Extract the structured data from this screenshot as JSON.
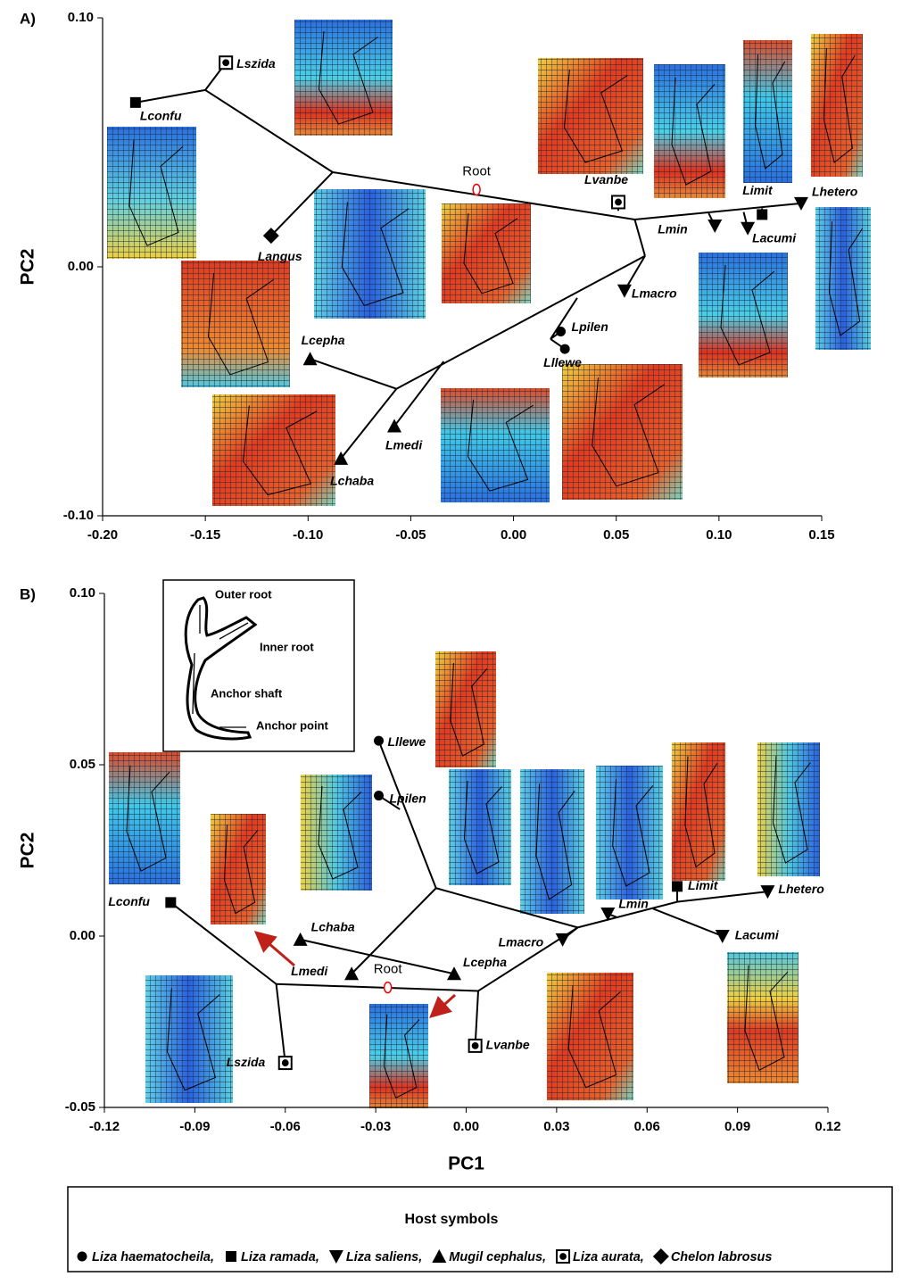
{
  "chart_data": [
    {
      "type": "scatter",
      "panel": "A)",
      "ylabel": "PC2",
      "xlim": [
        -0.2,
        0.15
      ],
      "ylim": [
        -0.1,
        0.1
      ],
      "xticks": [
        {
          "value": -0.2,
          "label": "-0.20"
        },
        {
          "value": -0.15,
          "label": "-0.15"
        },
        {
          "value": -0.1,
          "label": "-0.10"
        },
        {
          "value": -0.05,
          "label": "-0.05"
        },
        {
          "value": 0,
          "label": "0.00"
        },
        {
          "value": 0.05,
          "label": "0.05"
        },
        {
          "value": 0.1,
          "label": "0.10"
        },
        {
          "value": 0.15,
          "label": "0.15"
        }
      ],
      "yticks": [
        {
          "value": -0.1,
          "label": "-0.10"
        },
        {
          "value": 0,
          "label": "0.00"
        },
        {
          "value": 0.1,
          "label": "0.10"
        }
      ],
      "root": {
        "label": "Root",
        "x": -0.018,
        "y": 0.031
      },
      "points": [
        {
          "name": "Lconfu",
          "x": -0.184,
          "y": 0.066,
          "marker": "square"
        },
        {
          "name": "Lszida",
          "x": -0.14,
          "y": 0.082,
          "marker": "circle-in-square"
        },
        {
          "name": "Langus",
          "x": -0.118,
          "y": 0.0125,
          "marker": "diamond"
        },
        {
          "name": "Lvanbe",
          "x": 0.051,
          "y": 0.026,
          "marker": "circle-in-square"
        },
        {
          "name": "Lmin",
          "x": 0.098,
          "y": 0.0165,
          "marker": "triangle-down"
        },
        {
          "name": "Lacumi",
          "x": 0.114,
          "y": 0.0155,
          "marker": "triangle-down"
        },
        {
          "name": "Limit",
          "x": 0.121,
          "y": 0.021,
          "marker": "square"
        },
        {
          "name": "Lhetero",
          "x": 0.14,
          "y": 0.0255,
          "marker": "triangle-down"
        },
        {
          "name": "Lmacro",
          "x": 0.054,
          "y": -0.0096,
          "marker": "triangle-down"
        },
        {
          "name": "Lpilen",
          "x": 0.023,
          "y": -0.026,
          "marker": "circle"
        },
        {
          "name": "Lllewe",
          "x": 0.025,
          "y": -0.033,
          "marker": "circle"
        },
        {
          "name": "Lcepha",
          "x": -0.099,
          "y": -0.037,
          "marker": "triangle-up"
        },
        {
          "name": "Lmedi",
          "x": -0.058,
          "y": -0.064,
          "marker": "triangle-up"
        },
        {
          "name": "Lchaba",
          "x": -0.084,
          "y": -0.077,
          "marker": "triangle-up"
        }
      ],
      "edges": [
        [
          -0.184,
          0.066,
          -0.15,
          0.071
        ],
        [
          -0.14,
          0.082,
          -0.15,
          0.071
        ],
        [
          -0.15,
          0.071,
          -0.088,
          0.038
        ],
        [
          -0.088,
          0.038,
          -0.118,
          0.0125
        ],
        [
          -0.088,
          0.038,
          0.059,
          0.019
        ],
        [
          0.051,
          0.026,
          0.051,
          0.0225
        ],
        [
          0.059,
          0.019,
          0.14,
          0.0255
        ],
        [
          0.098,
          0.0165,
          0.095,
          0.0215
        ],
        [
          0.114,
          0.0155,
          0.112,
          0.022
        ],
        [
          0.121,
          0.021,
          0.121,
          0.0235
        ],
        [
          0.059,
          0.019,
          0.064,
          0.0044
        ],
        [
          0.064,
          0.0044,
          0.054,
          -0.0096
        ],
        [
          0.064,
          0.0044,
          -0.057,
          -0.049
        ],
        [
          0.018,
          -0.029,
          0.023,
          -0.026
        ],
        [
          0.018,
          -0.029,
          0.025,
          -0.033
        ],
        [
          0.018,
          -0.029,
          0.031,
          -0.0125
        ],
        [
          -0.057,
          -0.049,
          -0.099,
          -0.037
        ],
        [
          -0.057,
          -0.049,
          -0.084,
          -0.077
        ],
        [
          -0.034,
          -0.038,
          -0.058,
          -0.064
        ]
      ]
    },
    {
      "type": "scatter",
      "panel": "B)",
      "xlabel": "PC1",
      "ylabel": "PC2",
      "xlim": [
        -0.12,
        0.12
      ],
      "ylim": [
        -0.05,
        0.1
      ],
      "xticks": [
        {
          "value": -0.12,
          "label": "-0.12"
        },
        {
          "value": -0.09,
          "label": "-0.09"
        },
        {
          "value": -0.06,
          "label": "-0.06"
        },
        {
          "value": -0.03,
          "label": "-0.03"
        },
        {
          "value": 0,
          "label": "0.00"
        },
        {
          "value": 0.03,
          "label": "0.03"
        },
        {
          "value": 0.06,
          "label": "0.06"
        },
        {
          "value": 0.09,
          "label": "0.09"
        },
        {
          "value": 0.12,
          "label": "0.12"
        }
      ],
      "yticks": [
        {
          "value": -0.05,
          "label": "-0.05"
        },
        {
          "value": 0,
          "label": "0.00"
        },
        {
          "value": 0.05,
          "label": "0.05"
        },
        {
          "value": 0.1,
          "label": "0.10"
        }
      ],
      "root": {
        "label": "Root",
        "x": -0.026,
        "y": -0.015
      },
      "inset_labels": [
        "Outer root",
        "Inner root",
        "Anchor shaft",
        "Anchor point"
      ],
      "points": [
        {
          "name": "Lllewe",
          "x": -0.029,
          "y": 0.057,
          "marker": "circle"
        },
        {
          "name": "Lpilen",
          "x": -0.029,
          "y": 0.041,
          "marker": "circle"
        },
        {
          "name": "Lconfu",
          "x": -0.098,
          "y": 0.0098,
          "marker": "square"
        },
        {
          "name": "Lchaba",
          "x": -0.055,
          "y": -0.001,
          "marker": "triangle-up"
        },
        {
          "name": "Lmedi",
          "x": -0.038,
          "y": -0.011,
          "marker": "triangle-up"
        },
        {
          "name": "Lcepha",
          "x": -0.004,
          "y": -0.011,
          "marker": "triangle-up"
        },
        {
          "name": "Lszida",
          "x": -0.06,
          "y": -0.037,
          "marker": "circle-in-square"
        },
        {
          "name": "Lvanbe",
          "x": 0.003,
          "y": -0.032,
          "marker": "circle-in-square"
        },
        {
          "name": "Lmacro",
          "x": 0.032,
          "y": -0.001,
          "marker": "triangle-down"
        },
        {
          "name": "Lmin",
          "x": 0.047,
          "y": 0.0065,
          "marker": "triangle-down"
        },
        {
          "name": "Limit",
          "x": 0.07,
          "y": 0.0145,
          "marker": "square"
        },
        {
          "name": "Lhetero",
          "x": 0.1,
          "y": 0.013,
          "marker": "triangle-down"
        },
        {
          "name": "Lacumi",
          "x": 0.085,
          "y": 0,
          "marker": "triangle-down"
        }
      ],
      "edges": [
        [
          -0.098,
          0.0098,
          -0.063,
          -0.014
        ],
        [
          -0.063,
          -0.014,
          -0.06,
          -0.037
        ],
        [
          -0.063,
          -0.014,
          0.004,
          -0.016
        ],
        [
          0.004,
          -0.016,
          0.003,
          -0.032
        ],
        [
          0.004,
          -0.016,
          0.037,
          0.0025
        ],
        [
          0.037,
          0.0025,
          0.032,
          -0.001
        ],
        [
          0.037,
          0.0025,
          0.07,
          0.01
        ],
        [
          0.07,
          0.01,
          0.07,
          0.0145
        ],
        [
          0.07,
          0.01,
          0.1,
          0.013
        ],
        [
          0.05,
          0.0055,
          0.047,
          0.0065
        ],
        [
          0.062,
          0.008,
          0.085,
          0
        ],
        [
          -0.029,
          0.057,
          -0.01,
          0.014
        ],
        [
          -0.029,
          0.041,
          -0.022,
          0.037
        ],
        [
          -0.01,
          0.014,
          -0.038,
          -0.011
        ],
        [
          -0.01,
          0.014,
          0.037,
          0.0025
        ],
        [
          -0.055,
          -0.001,
          -0.004,
          -0.011
        ]
      ]
    }
  ],
  "legend": {
    "title": "Host symbols",
    "entries": [
      {
        "name": "Liza haematocheila,",
        "marker": "circle"
      },
      {
        "name": "Liza ramada,",
        "marker": "square"
      },
      {
        "name": "Liza saliens,",
        "marker": "triangle-down"
      },
      {
        "name": "Mugil cephalus,",
        "marker": "triangle-up"
      },
      {
        "name": "Liza aurata,",
        "marker": "circle-in-square"
      },
      {
        "name": "Chelon labrosus",
        "marker": "diamond"
      }
    ]
  }
}
